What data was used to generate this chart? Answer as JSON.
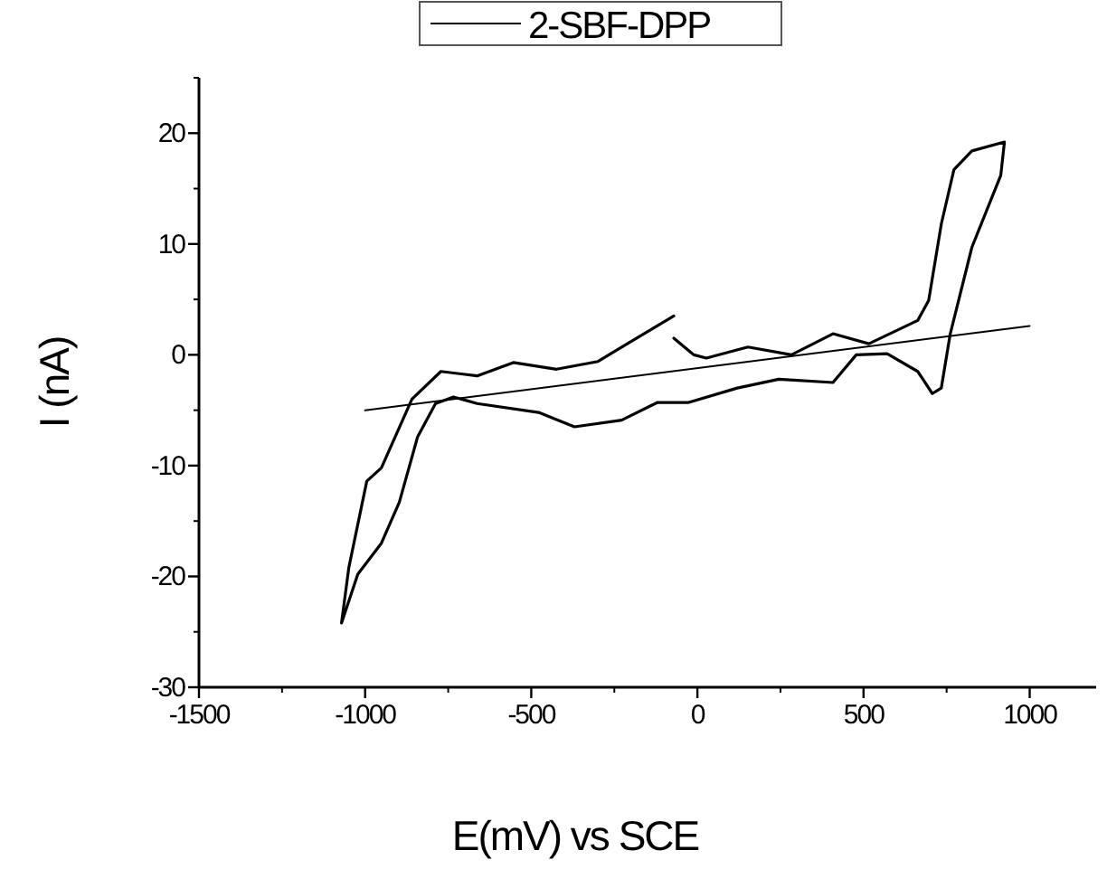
{
  "chart_data": {
    "type": "line",
    "xlabel": "E(mV) vs SCE",
    "ylabel": "I (nA)",
    "xlim": [
      -1500,
      1200
    ],
    "ylim": [
      -30,
      25
    ],
    "xticks": [
      -1500,
      -1000,
      -500,
      0,
      500,
      1000
    ],
    "yticks": [
      -30,
      -20,
      -10,
      0,
      10,
      20
    ],
    "legend": "top",
    "grid": false,
    "marker": "none",
    "line_style": "solid",
    "series": [
      {
        "name": "2-SBF-DPP",
        "color": "#000000",
        "x": [
          -71,
          -11,
          27,
          152,
          283,
          408,
          516,
          663,
          696,
          734,
          772,
          826,
          924,
          913,
          826,
          761,
          734,
          707,
          663,
          571,
          478,
          408,
          245,
          120,
          -27,
          -120,
          -228,
          -370,
          -478,
          -663,
          -734,
          -788,
          -842,
          -897,
          -951,
          -1022,
          -1071,
          -1049,
          -995,
          -951,
          -859,
          -772,
          -663,
          -554,
          -424,
          -299,
          -228,
          -71
        ],
        "values": [
          1.5,
          0,
          -0.3,
          0.7,
          0,
          1.9,
          1.0,
          3.1,
          4.9,
          11.8,
          16.7,
          18.4,
          19.2,
          16.2,
          9.7,
          1.9,
          -3.0,
          -3.5,
          -1.5,
          0.1,
          0,
          -2.5,
          -2.2,
          -3.0,
          -4.3,
          -4.3,
          -5.9,
          -6.5,
          -5.2,
          -4.4,
          -3.8,
          -4.4,
          -7.4,
          -13.3,
          -17.0,
          -19.8,
          -24.2,
          -19.2,
          -11.4,
          -10.2,
          -4.0,
          -1.5,
          -1.9,
          -0.7,
          -1.3,
          -0.6,
          0.7,
          3.5
        ]
      },
      {
        "color": "#000000",
        "x": [
          -1000,
          1000
        ],
        "values": [
          -5,
          2.6
        ]
      }
    ]
  }
}
